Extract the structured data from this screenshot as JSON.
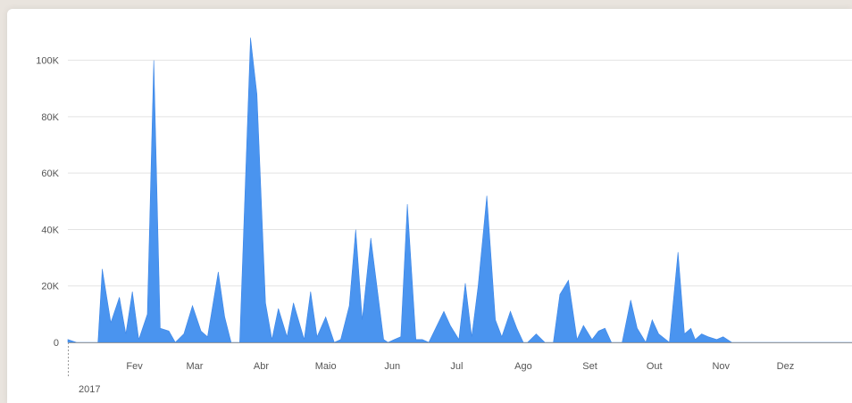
{
  "chart_data": {
    "type": "area",
    "year_label": "2017",
    "month_labels": [
      "Fev",
      "Mar",
      "Abr",
      "Maio",
      "Jun",
      "Jul",
      "Ago",
      "Set",
      "Out",
      "Nov",
      "Dez"
    ],
    "y_ticks": [
      {
        "v": 0,
        "label": "0"
      },
      {
        "v": 20000,
        "label": "20K"
      },
      {
        "v": 40000,
        "label": "40K"
      },
      {
        "v": 60000,
        "label": "60K"
      },
      {
        "v": 80000,
        "label": "80K"
      },
      {
        "v": 100000,
        "label": "100K"
      }
    ],
    "ylim": [
      0,
      110000
    ],
    "xlim": [
      0,
      365
    ],
    "grid": true,
    "legend": "none",
    "color": "#4a94ef",
    "x": [
      0,
      4,
      10,
      14,
      16,
      20,
      24,
      27,
      30,
      33,
      37,
      40,
      43,
      47,
      50,
      54,
      58,
      62,
      65,
      70,
      73,
      76,
      80,
      85,
      88,
      92,
      95,
      98,
      102,
      105,
      110,
      113,
      116,
      120,
      124,
      127,
      131,
      134,
      137,
      141,
      143,
      147,
      149,
      152,
      155,
      158,
      162,
      165,
      168,
      175,
      178,
      182,
      185,
      188,
      191,
      195,
      199,
      202,
      206,
      209,
      212,
      214,
      218,
      222,
      226,
      229,
      233,
      237,
      240,
      244,
      247,
      250,
      253,
      256,
      258,
      262,
      265,
      269,
      272,
      275,
      280,
      284,
      287,
      290,
      292,
      295,
      298,
      302,
      305,
      309,
      314,
      317,
      320,
      324,
      326,
      329,
      333,
      336,
      340,
      343,
      348,
      353,
      357,
      361,
      365
    ],
    "y": [
      1000,
      0,
      0,
      0,
      26000,
      7000,
      16000,
      3000,
      18000,
      1000,
      10000,
      100000,
      5000,
      4000,
      0,
      3000,
      13000,
      4000,
      2000,
      25000,
      9000,
      0,
      0,
      108000,
      88000,
      14000,
      1000,
      12000,
      2000,
      14000,
      1000,
      18000,
      2000,
      9000,
      0,
      1000,
      13000,
      40000,
      8000,
      37000,
      25000,
      1000,
      0,
      1000,
      2000,
      49000,
      1000,
      1000,
      0,
      11000,
      6000,
      1000,
      21000,
      2000,
      20000,
      52000,
      8000,
      2000,
      11000,
      5000,
      0,
      0,
      3000,
      0,
      0,
      17000,
      22000,
      1000,
      6000,
      1000,
      4000,
      5000,
      0,
      0,
      0,
      15000,
      5000,
      0,
      8000,
      3000,
      0,
      32000,
      3000,
      5000,
      1000,
      3000,
      2000,
      1000,
      2000,
      0,
      0,
      0,
      0,
      0,
      0,
      0,
      0,
      0,
      0,
      0,
      0,
      0,
      0,
      0,
      0
    ],
    "x_label_positions": [
      31,
      59,
      90,
      120,
      151,
      181,
      212,
      243,
      273,
      304,
      334
    ]
  }
}
